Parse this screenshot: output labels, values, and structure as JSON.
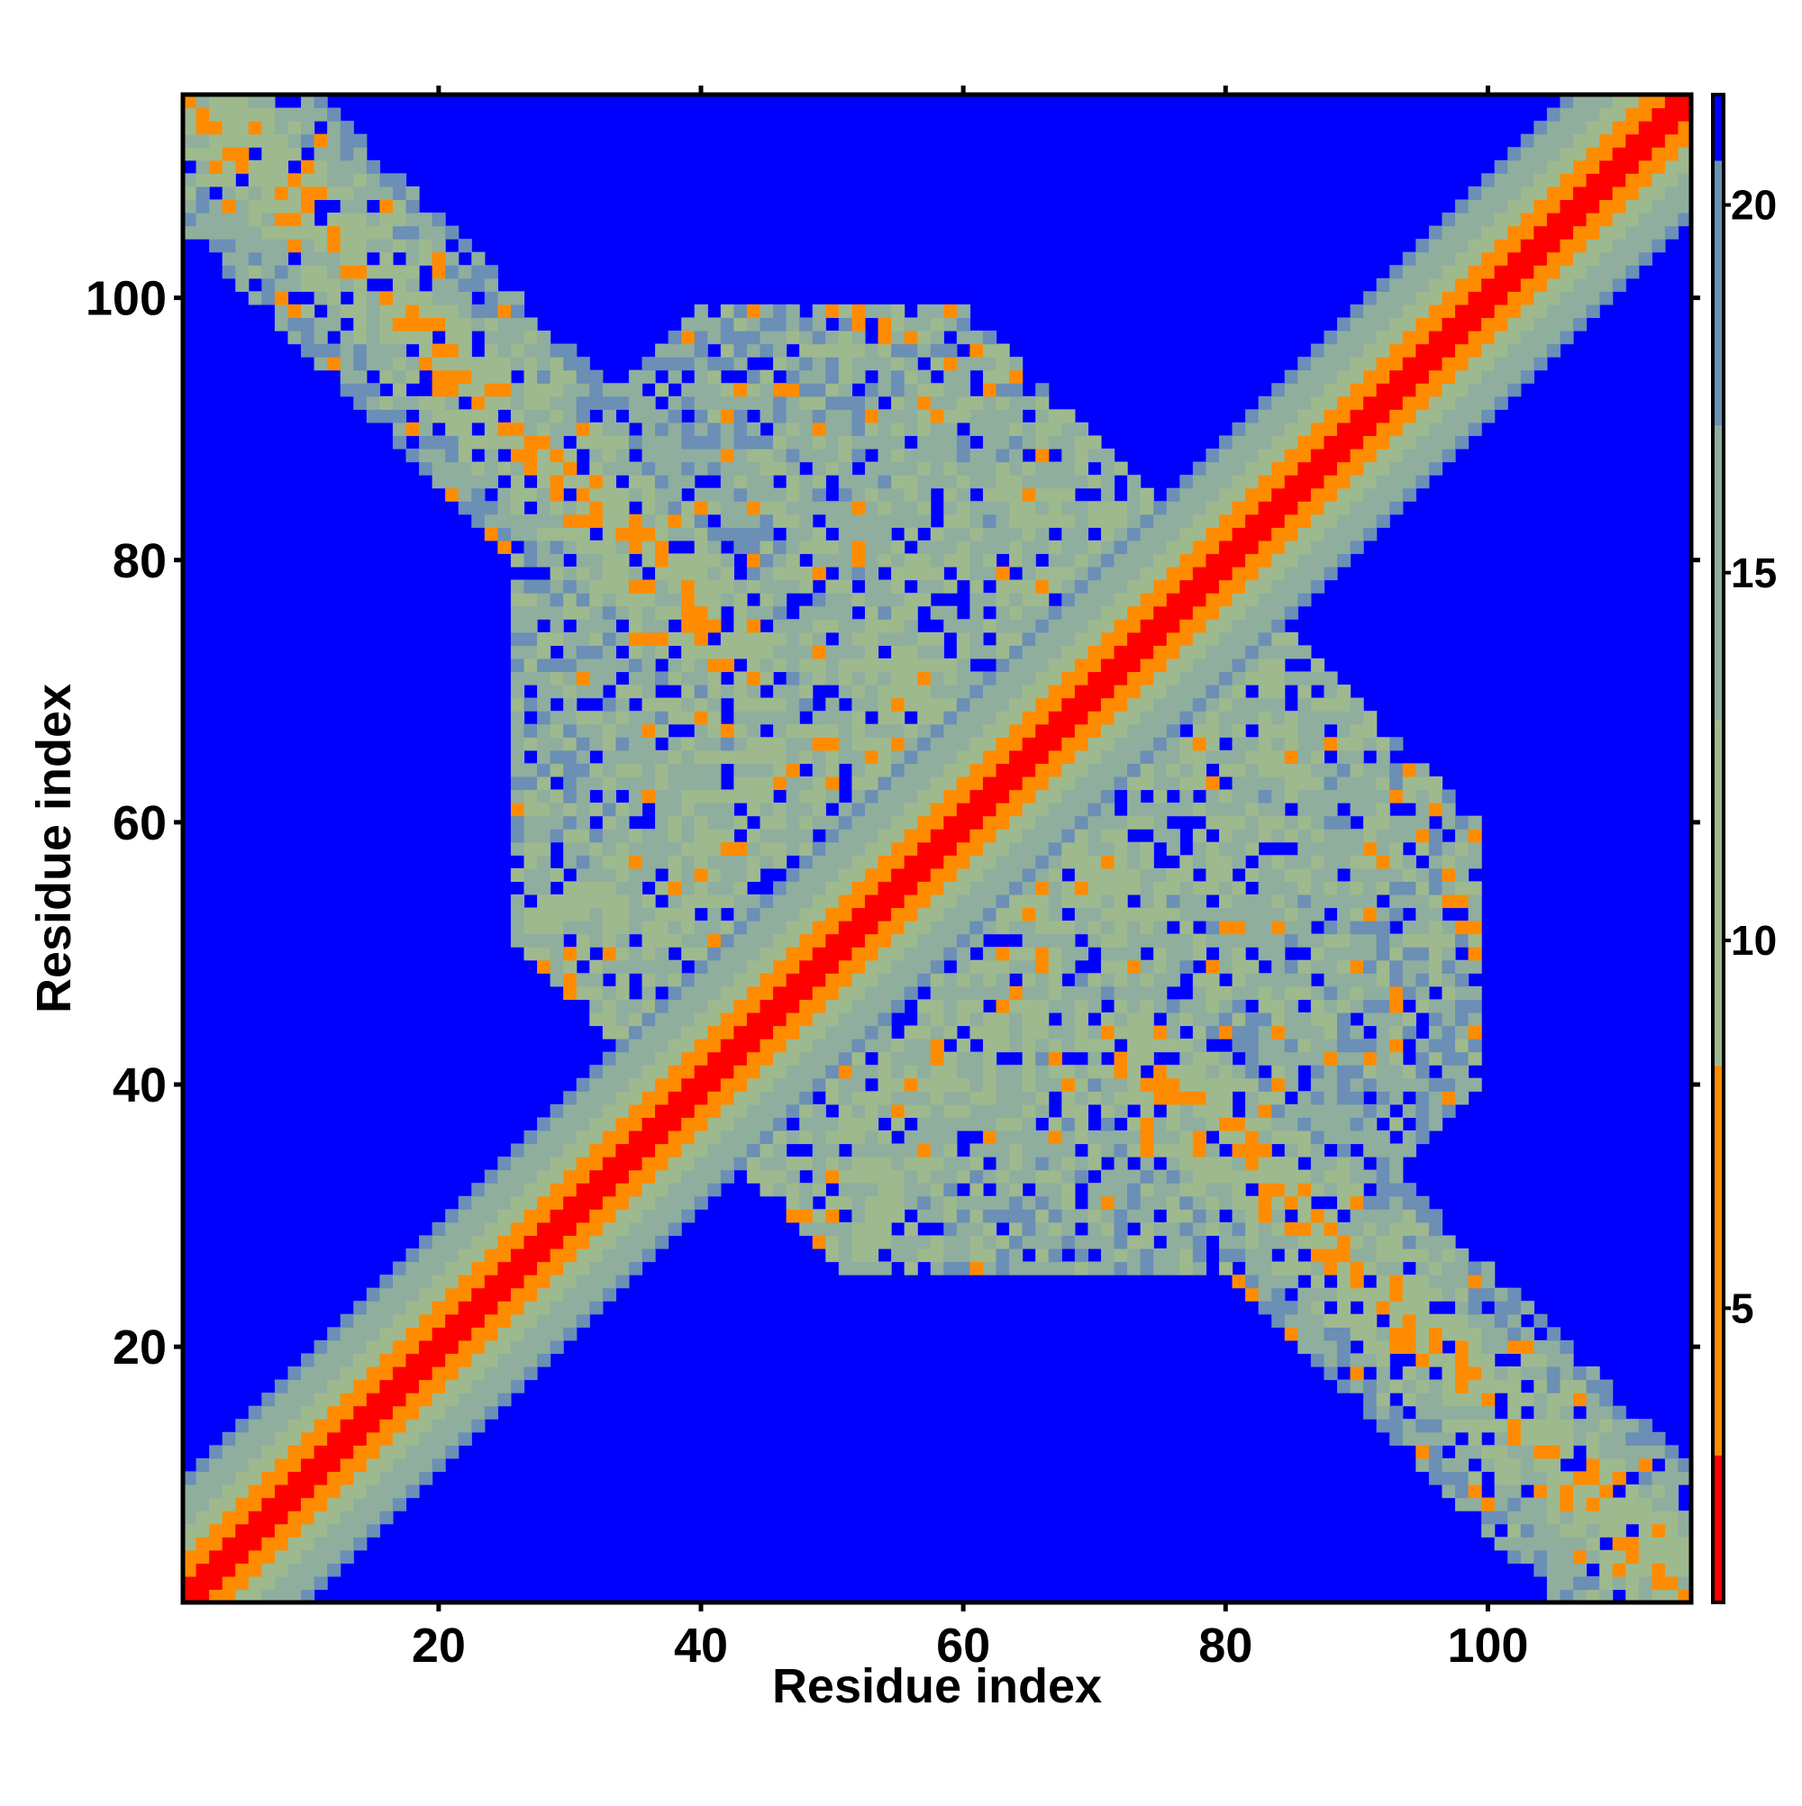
{
  "chart_data": {
    "type": "heatmap",
    "title": "",
    "xlabel": "Residue index",
    "ylabel": "Residue index",
    "n_residues": 115,
    "xlim": [
      1,
      115
    ],
    "ylim": [
      1,
      115
    ],
    "x_ticks": [
      "20",
      "40",
      "60",
      "80",
      "100"
    ],
    "y_ticks": [
      "20",
      "40",
      "60",
      "80",
      "100"
    ],
    "x_tick_values": [
      20,
      40,
      60,
      80,
      100
    ],
    "y_tick_values": [
      20,
      40,
      60,
      80,
      100
    ],
    "colorbar": {
      "ticks": [
        "5",
        "10",
        "15",
        "20"
      ],
      "tick_values": [
        5,
        10,
        15,
        20
      ],
      "range": [
        1,
        21.5
      ],
      "colors": [
        "#ff0000",
        "#ff8c00",
        "#9eb98e",
        "#6b8fb5",
        "#0000ff"
      ]
    },
    "colors": {
      "background_value": "#0000ff",
      "diagonal": "#ff0000",
      "near_contact": "#ff8c00",
      "mid_distance": "#9eb98e",
      "far_distance": "#6b8fb5"
    }
  }
}
